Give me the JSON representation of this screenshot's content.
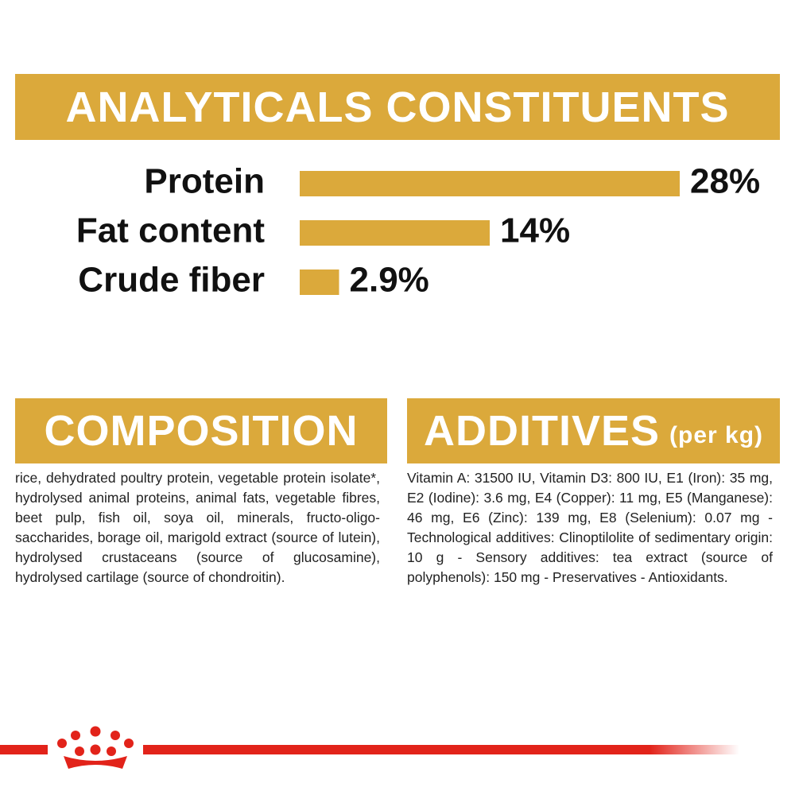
{
  "chart_data": {
    "type": "bar",
    "title": "ANALYTICALS CONSTITUENTS",
    "categories": [
      "Protein",
      "Fat content",
      "Crude fiber"
    ],
    "values": [
      28,
      14,
      2.9
    ],
    "value_labels": [
      "28%",
      "14%",
      "2.9%"
    ],
    "color": "#dba93b"
  },
  "composition": {
    "title": "COMPOSITION",
    "text": "rice, dehydrated poultry protein, vegetable protein isolate*, hydrolysed animal proteins, animal fats, vegetable fibres, beet pulp, fish oil, soya oil, minerals, fructo-oligo-saccharides, borage oil, marigold extract (source of lutein), hydrolysed crustaceans (source of glucosamine), hydrolysed cartilage (source of chondroitin)."
  },
  "additives": {
    "title": "ADDITIVES",
    "subtitle": "(per kg)",
    "text": "Vitamin A: 31500 IU, Vitamin D3: 800 IU, E1 (Iron): 35 mg, E2 (Iodine): 3.6 mg, E4 (Copper): 11 mg, E5 (Manganese): 46 mg, E6 (Zinc): 139 mg, E8 (Selenium): 0.07 mg - Technological additives: Clinoptilolite of sedimentary origin: 10 g - Sensory additives: tea extract (source of polyphenols): 150 mg - Preservatives - Antioxidants."
  }
}
